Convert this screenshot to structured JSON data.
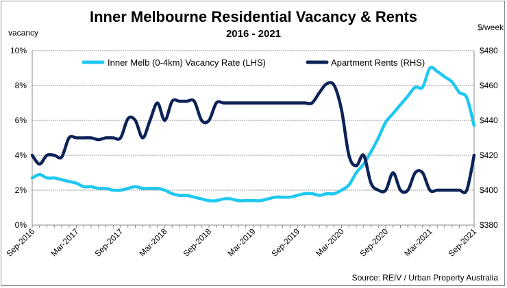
{
  "chart_data": {
    "type": "line",
    "title": "Inner Melbourne Residential Vacancy & Rents",
    "subtitle": "2016 - 2021",
    "left_axis_label": "vacancy",
    "right_axis_label": "$/week",
    "source": "Source: REIV / Urban Property Australia",
    "legend_placement": "top",
    "grid": true,
    "left_ylim": [
      0,
      10
    ],
    "left_ticks": [
      "0%",
      "2%",
      "4%",
      "6%",
      "8%",
      "10%"
    ],
    "right_ylim": [
      380,
      480
    ],
    "right_ticks": [
      "$380",
      "$400",
      "$420",
      "$440",
      "$460",
      "$480"
    ],
    "x_tick_labels": [
      "Sep-2016",
      "Mar-2017",
      "Sep-2017",
      "Mar-2018",
      "Sep-2018",
      "Mar-2019",
      "Sep-2019",
      "Mar-2020",
      "Sep-2020",
      "Mar-2021",
      "Sep-2021"
    ],
    "x_months_count": 61,
    "series": [
      {
        "name": "Inner Melb (0-4km) Vacancy Rate (LHS)",
        "axis": "left",
        "color": "#1EC8F0",
        "values": [
          2.7,
          2.9,
          2.7,
          2.7,
          2.6,
          2.5,
          2.4,
          2.2,
          2.2,
          2.1,
          2.1,
          2.0,
          2.0,
          2.1,
          2.2,
          2.1,
          2.1,
          2.1,
          2.0,
          1.8,
          1.7,
          1.7,
          1.6,
          1.5,
          1.4,
          1.4,
          1.5,
          1.5,
          1.4,
          1.4,
          1.4,
          1.4,
          1.5,
          1.6,
          1.6,
          1.6,
          1.7,
          1.8,
          1.8,
          1.7,
          1.8,
          1.8,
          2.0,
          2.3,
          3.0,
          3.5,
          4.2,
          5.0,
          5.9,
          6.4,
          6.9,
          7.4,
          7.9,
          7.9,
          9.0,
          8.8,
          8.5,
          8.2,
          7.6,
          7.3,
          5.7
        ]
      },
      {
        "name": "Apartment Rents (RHS)",
        "axis": "right",
        "color": "#0D2357",
        "values": [
          420,
          415,
          420,
          420,
          419,
          430,
          430,
          430,
          430,
          429,
          430,
          430,
          430,
          441,
          440,
          430,
          440,
          450,
          440,
          451,
          451,
          451,
          451,
          440,
          440,
          450,
          450,
          450,
          450,
          450,
          450,
          450,
          450,
          450,
          450,
          450,
          450,
          450,
          450,
          456,
          461,
          460,
          446,
          420,
          414,
          420,
          404,
          400,
          400,
          410,
          400,
          400,
          410,
          410,
          400,
          400,
          400,
          400,
          400,
          400,
          420
        ]
      }
    ]
  }
}
